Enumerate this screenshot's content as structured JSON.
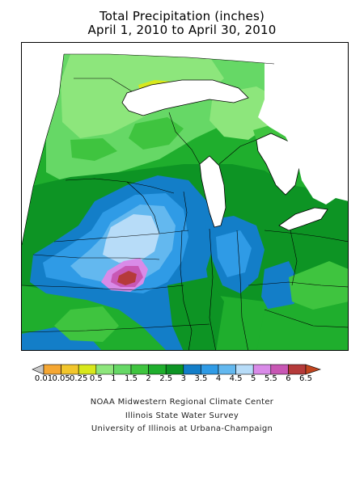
{
  "title": {
    "line1": "Total Precipitation (inches)",
    "line2": "April 1, 2010 to April 30, 2010"
  },
  "legend": {
    "ticks": [
      "0.01",
      "0.05",
      "0.25",
      "0.5",
      "1",
      "1.5",
      "2",
      "2.5",
      "3",
      "3.5",
      "4",
      "4.5",
      "5",
      "5.5",
      "6",
      "6.5"
    ],
    "colors": {
      "lt_0.01": "#c8c8c8",
      "0.01-0.05": "#f5a733",
      "0.05-0.25": "#f2c62c",
      "0.25-0.5": "#d8e81c",
      "0.5-1": "#8de67c",
      "1-1.5": "#66d866",
      "1.5-2": "#3fc43f",
      "2-2.5": "#1fae2d",
      "2.5-3": "#0d9424",
      "3-3.5": "#137ec8",
      "3.5-4": "#2f9be6",
      "4-4.5": "#63b8ef",
      "4.5-5": "#b7dcf8",
      "5-5.5": "#d98be8",
      "5.5-6": "#c857b4",
      "6-6.5": "#b53a3a",
      "gt_6.5": "#c2451f"
    }
  },
  "credits": {
    "line1": "NOAA Midwestern Regional Climate Center",
    "line2": "Illinois State Water Survey",
    "line3": "University of Illinois at Urbana-Champaign"
  }
}
